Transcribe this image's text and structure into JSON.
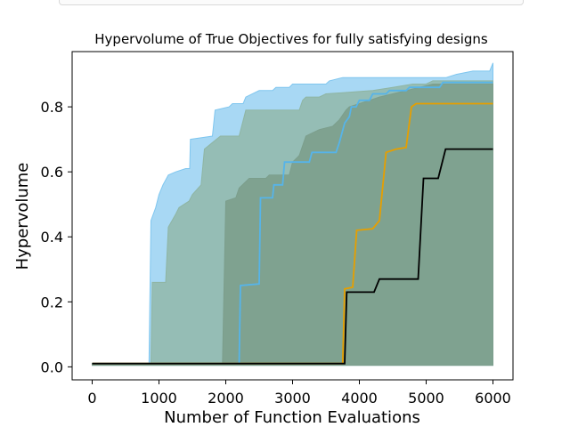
{
  "chart_data": {
    "type": "line",
    "title": "Hypervolume of True Objectives for fully satisfying designs",
    "xlabel": "Number of Function Evaluations",
    "ylabel": "Hypervolume",
    "xlim": [
      -300,
      6300
    ],
    "ylim": [
      -0.04,
      0.97
    ],
    "xticks": [
      0,
      1000,
      2000,
      3000,
      4000,
      5000,
      6000
    ],
    "yticks": [
      0.0,
      0.2,
      0.4,
      0.6,
      0.8
    ],
    "ytick_labels": [
      "0.0",
      "0.2",
      "0.4",
      "0.6",
      "0.8"
    ],
    "grid": false,
    "bands": [
      {
        "color": "#7fc6ef",
        "opacity": 0.68,
        "upper": [
          [
            0,
            0.01
          ],
          [
            850,
            0.01
          ],
          [
            880,
            0.45
          ],
          [
            950,
            0.49
          ],
          [
            1000,
            0.53
          ],
          [
            1060,
            0.56
          ],
          [
            1140,
            0.59
          ],
          [
            1250,
            0.6
          ],
          [
            1400,
            0.61
          ],
          [
            1460,
            0.61
          ],
          [
            1470,
            0.7
          ],
          [
            1800,
            0.71
          ],
          [
            1840,
            0.79
          ],
          [
            2050,
            0.8
          ],
          [
            2100,
            0.81
          ],
          [
            2260,
            0.81
          ],
          [
            2300,
            0.83
          ],
          [
            2500,
            0.85
          ],
          [
            2700,
            0.85
          ],
          [
            2750,
            0.86
          ],
          [
            2950,
            0.86
          ],
          [
            3000,
            0.87
          ],
          [
            3500,
            0.87
          ],
          [
            3550,
            0.88
          ],
          [
            3750,
            0.89
          ],
          [
            4000,
            0.89
          ],
          [
            4500,
            0.89
          ],
          [
            5300,
            0.89
          ],
          [
            5450,
            0.9
          ],
          [
            5700,
            0.91
          ],
          [
            5950,
            0.91
          ],
          [
            6000,
            0.935
          ]
        ],
        "lower": [
          [
            0,
            0.005
          ],
          [
            6000,
            0.005
          ]
        ]
      },
      {
        "color": "#8fb5a3",
        "opacity": 0.78,
        "upper": [
          [
            0,
            0.01
          ],
          [
            880,
            0.01
          ],
          [
            900,
            0.26
          ],
          [
            1100,
            0.26
          ],
          [
            1140,
            0.43
          ],
          [
            1250,
            0.47
          ],
          [
            1300,
            0.49
          ],
          [
            1450,
            0.51
          ],
          [
            1500,
            0.53
          ],
          [
            1630,
            0.56
          ],
          [
            1680,
            0.67
          ],
          [
            1800,
            0.69
          ],
          [
            1920,
            0.71
          ],
          [
            2200,
            0.71
          ],
          [
            2300,
            0.79
          ],
          [
            2500,
            0.79
          ],
          [
            3100,
            0.79
          ],
          [
            3150,
            0.82
          ],
          [
            3200,
            0.83
          ],
          [
            3400,
            0.83
          ],
          [
            3500,
            0.84
          ],
          [
            4200,
            0.85
          ],
          [
            4500,
            0.86
          ],
          [
            4800,
            0.87
          ],
          [
            5000,
            0.87
          ],
          [
            5100,
            0.88
          ],
          [
            6000,
            0.88
          ]
        ],
        "lower": [
          [
            0,
            0.005
          ],
          [
            6000,
            0.005
          ]
        ]
      },
      {
        "color": "#7c9e8c",
        "opacity": 0.9,
        "upper": [
          [
            0,
            0.01
          ],
          [
            1950,
            0.01
          ],
          [
            2000,
            0.51
          ],
          [
            2150,
            0.52
          ],
          [
            2200,
            0.55
          ],
          [
            2350,
            0.58
          ],
          [
            2600,
            0.58
          ],
          [
            2650,
            0.59
          ],
          [
            2950,
            0.59
          ],
          [
            3000,
            0.63
          ],
          [
            3100,
            0.65
          ],
          [
            3200,
            0.71
          ],
          [
            3300,
            0.72
          ],
          [
            3400,
            0.73
          ],
          [
            3600,
            0.74
          ],
          [
            3700,
            0.76
          ],
          [
            3800,
            0.79
          ],
          [
            3850,
            0.8
          ],
          [
            4000,
            0.81
          ],
          [
            4150,
            0.82
          ],
          [
            4300,
            0.83
          ],
          [
            4500,
            0.84
          ],
          [
            4700,
            0.85
          ],
          [
            4900,
            0.86
          ],
          [
            5100,
            0.87
          ],
          [
            6000,
            0.87
          ]
        ],
        "lower": [
          [
            0,
            0.005
          ],
          [
            6000,
            0.005
          ]
        ]
      }
    ],
    "series": [
      {
        "color": "#56b4e9",
        "values": [
          [
            0,
            0.01
          ],
          [
            2200,
            0.01
          ],
          [
            2220,
            0.25
          ],
          [
            2500,
            0.255
          ],
          [
            2520,
            0.52
          ],
          [
            2700,
            0.52
          ],
          [
            2720,
            0.56
          ],
          [
            2850,
            0.56
          ],
          [
            2880,
            0.63
          ],
          [
            3250,
            0.63
          ],
          [
            3290,
            0.66
          ],
          [
            3650,
            0.66
          ],
          [
            3700,
            0.69
          ],
          [
            3780,
            0.75
          ],
          [
            3850,
            0.77
          ],
          [
            3880,
            0.8
          ],
          [
            3950,
            0.8
          ],
          [
            4000,
            0.82
          ],
          [
            4150,
            0.82
          ],
          [
            4200,
            0.84
          ],
          [
            4400,
            0.84
          ],
          [
            4450,
            0.85
          ],
          [
            4700,
            0.85
          ],
          [
            4750,
            0.86
          ],
          [
            5200,
            0.86
          ],
          [
            5250,
            0.875
          ],
          [
            6000,
            0.875
          ]
        ]
      },
      {
        "color": "#e69f00",
        "values": [
          [
            0,
            0.01
          ],
          [
            2200,
            0.01
          ],
          [
            3750,
            0.01
          ],
          [
            3780,
            0.24
          ],
          [
            3900,
            0.245
          ],
          [
            3960,
            0.42
          ],
          [
            4200,
            0.425
          ],
          [
            4300,
            0.45
          ],
          [
            4400,
            0.66
          ],
          [
            4550,
            0.67
          ],
          [
            4700,
            0.675
          ],
          [
            4780,
            0.8
          ],
          [
            4850,
            0.81
          ],
          [
            5500,
            0.81
          ],
          [
            5600,
            0.81
          ],
          [
            6000,
            0.81
          ]
        ]
      },
      {
        "color": "#000000",
        "values": [
          [
            0,
            0.01
          ],
          [
            3780,
            0.01
          ],
          [
            3810,
            0.23
          ],
          [
            4220,
            0.23
          ],
          [
            4300,
            0.27
          ],
          [
            4880,
            0.27
          ],
          [
            4960,
            0.58
          ],
          [
            5180,
            0.58
          ],
          [
            5290,
            0.67
          ],
          [
            6000,
            0.67
          ]
        ]
      }
    ]
  }
}
